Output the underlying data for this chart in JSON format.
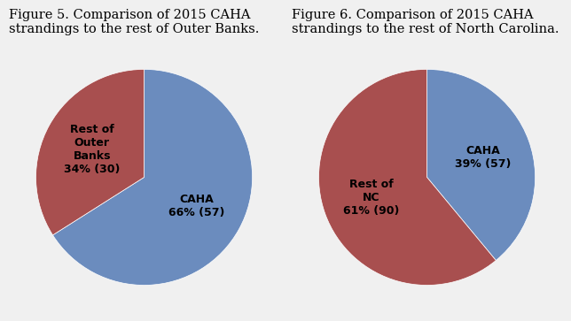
{
  "fig5": {
    "title": "Figure 5. Comparison of 2015 CAHA\nstrandings to the rest of Outer Banks.",
    "slices": [
      66,
      34
    ],
    "labels": [
      "CAHA\n66% (57)",
      "Rest of\nOuter\nBanks\n34% (30)"
    ],
    "colors": [
      "#6b8cbe",
      "#a84f4f"
    ],
    "startangle": 90
  },
  "fig6": {
    "title": "Figure 6. Comparison of 2015 CAHA\nstrandings to the rest of North Carolina.",
    "slices": [
      39,
      61
    ],
    "labels": [
      "CAHA\n39% (57)",
      "Rest of\nNC\n61% (90)"
    ],
    "colors": [
      "#6b8cbe",
      "#a84f4f"
    ],
    "startangle": 90
  },
  "background_color": "#f0f0f0",
  "box_color": "#ffffff",
  "title_fontsize": 10.5,
  "label_fontsize": 9
}
